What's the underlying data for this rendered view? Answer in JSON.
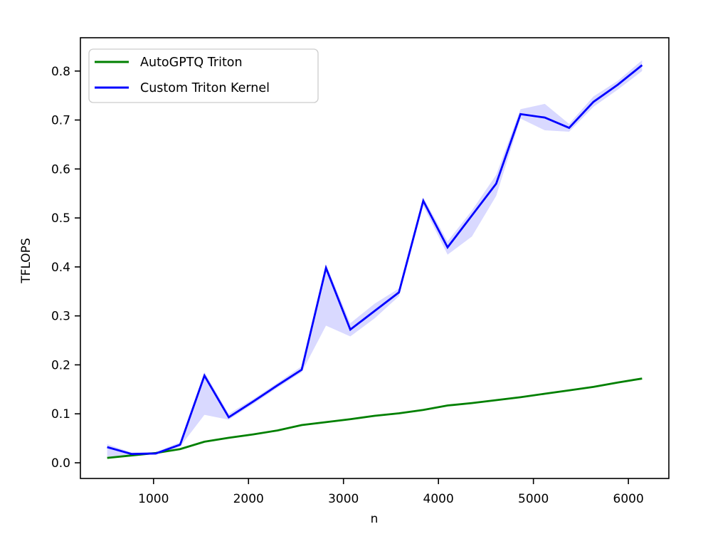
{
  "chart_data": {
    "type": "line",
    "title": "",
    "xlabel": "n",
    "ylabel": "TFLOPS",
    "xlim": [
      230,
      6426
    ],
    "ylim": [
      -0.032,
      0.868
    ],
    "grid": false,
    "legend_position": "upper left",
    "x_ticks": [
      "1000",
      "2000",
      "3000",
      "4000",
      "5000",
      "6000"
    ],
    "y_ticks": [
      "0.0",
      "0.1",
      "0.2",
      "0.3",
      "0.4",
      "0.5",
      "0.6",
      "0.7",
      "0.8"
    ],
    "x": [
      512,
      768,
      1024,
      1280,
      1536,
      1792,
      2048,
      2304,
      2560,
      2816,
      3072,
      3328,
      3584,
      3840,
      4096,
      4352,
      4608,
      4864,
      5120,
      5376,
      5632,
      5888,
      6144
    ],
    "series": [
      {
        "name": "AutoGPTQ Triton",
        "color": "#008000",
        "values": [
          0.01,
          0.015,
          0.02,
          0.028,
          0.043,
          0.051,
          0.058,
          0.066,
          0.077,
          0.083,
          0.089,
          0.096,
          0.101,
          0.108,
          0.117,
          0.122,
          0.128,
          0.134,
          0.141,
          0.148,
          0.155,
          0.164,
          0.172
        ]
      },
      {
        "name": "Custom Triton Kernel",
        "color": "#0000ff",
        "values": [
          0.032,
          0.018,
          0.019,
          0.037,
          0.178,
          0.093,
          0.125,
          0.158,
          0.19,
          0.398,
          0.272,
          0.31,
          0.348,
          0.535,
          0.44,
          0.505,
          0.57,
          0.712,
          0.705,
          0.684,
          0.737,
          0.772,
          0.812
        ],
        "band_lower": [
          0.012,
          0.016,
          0.017,
          0.033,
          0.098,
          0.088,
          0.12,
          0.153,
          0.185,
          0.28,
          0.258,
          0.295,
          0.34,
          0.525,
          0.425,
          0.462,
          0.545,
          0.703,
          0.679,
          0.676,
          0.727,
          0.762,
          0.8
        ],
        "band_upper": [
          0.038,
          0.021,
          0.022,
          0.042,
          0.185,
          0.1,
          0.13,
          0.163,
          0.197,
          0.405,
          0.285,
          0.325,
          0.356,
          0.542,
          0.452,
          0.515,
          0.588,
          0.722,
          0.733,
          0.692,
          0.748,
          0.78,
          0.822
        ],
        "band_color": "rgba(0,0,255,0.15)"
      }
    ]
  },
  "style": {
    "spine_color": "#000000",
    "background": "#ffffff",
    "legend_border": "#cccccc",
    "legend_background": "#ffffff"
  }
}
